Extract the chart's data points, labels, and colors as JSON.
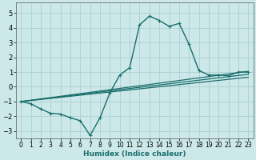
{
  "xlabel": "Humidex (Indice chaleur)",
  "xlim": [
    -0.5,
    23.5
  ],
  "ylim": [
    -3.5,
    5.7
  ],
  "yticks": [
    -3,
    -2,
    -1,
    0,
    1,
    2,
    3,
    4,
    5
  ],
  "xticks": [
    0,
    1,
    2,
    3,
    4,
    5,
    6,
    7,
    8,
    9,
    10,
    11,
    12,
    13,
    14,
    15,
    16,
    17,
    18,
    19,
    20,
    21,
    22,
    23
  ],
  "bg_color": "#cce8e8",
  "grid_color": "#aacfcf",
  "line_color": "#1a6e6e",
  "lines": [
    {
      "x": [
        0,
        1,
        2,
        3,
        4,
        5,
        6,
        7,
        8,
        9,
        10,
        11,
        12,
        13,
        14,
        15,
        16,
        17,
        18,
        19,
        20,
        21,
        22,
        23
      ],
      "y": [
        -1.0,
        -1.15,
        -1.5,
        -1.8,
        -1.85,
        -2.1,
        -2.3,
        -3.3,
        -2.1,
        -0.4,
        0.8,
        1.3,
        4.2,
        4.8,
        4.5,
        4.1,
        4.3,
        2.9,
        1.1,
        0.8,
        0.8,
        0.75,
        1.0,
        1.0
      ],
      "marker": true,
      "lw": 1.0
    },
    {
      "x": [
        0,
        23
      ],
      "y": [
        -1.0,
        1.05
      ],
      "marker": false,
      "lw": 0.9
    },
    {
      "x": [
        0,
        23
      ],
      "y": [
        -1.0,
        0.85
      ],
      "marker": false,
      "lw": 0.9
    },
    {
      "x": [
        0,
        23
      ],
      "y": [
        -1.0,
        0.65
      ],
      "marker": false,
      "lw": 0.9
    }
  ]
}
